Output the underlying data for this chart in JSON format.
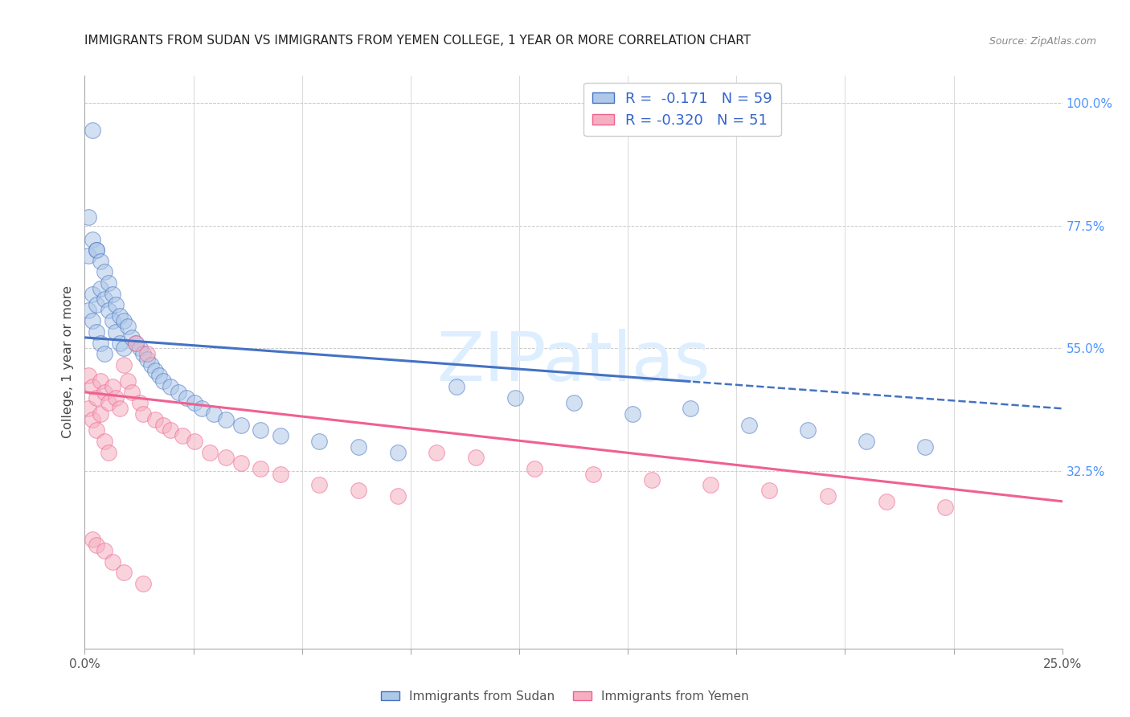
{
  "title": "IMMIGRANTS FROM SUDAN VS IMMIGRANTS FROM YEMEN COLLEGE, 1 YEAR OR MORE CORRELATION CHART",
  "source": "Source: ZipAtlas.com",
  "ylabel": "College, 1 year or more",
  "xmin": 0.0,
  "xmax": 0.25,
  "ymin": 0.0,
  "ymax": 1.05,
  "right_yticks": [
    1.0,
    0.775,
    0.55,
    0.325
  ],
  "right_yticklabels": [
    "100.0%",
    "77.5%",
    "55.0%",
    "32.5%"
  ],
  "sudan_R": -0.171,
  "sudan_N": 59,
  "yemen_R": -0.32,
  "yemen_N": 51,
  "sudan_color": "#adc8e8",
  "yemen_color": "#f5afc0",
  "sudan_line_color": "#4472c4",
  "yemen_line_color": "#f06090",
  "sudan_line_dash_start": 0.155,
  "watermark": "ZIPatlas",
  "watermark_color": "#ddeeff",
  "grid_color": "#cccccc",
  "background_color": "#ffffff",
  "x_ticklabels": [
    "0.0%",
    "",
    "",
    "",
    "",
    "",
    "",
    "",
    "",
    "25.0%"
  ]
}
